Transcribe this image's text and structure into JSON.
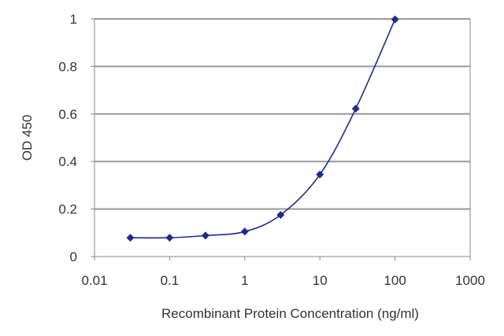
{
  "chart_data": {
    "type": "scatter",
    "title": "",
    "xlabel": "Recombinant Protein Concentration (ng/ml)",
    "ylabel": "OD 450",
    "x_scale": "log",
    "xlim": [
      0.01,
      1000
    ],
    "ylim": [
      0,
      1
    ],
    "x_ticks": [
      "0.01",
      "0.1",
      "1",
      "10",
      "100",
      "1000"
    ],
    "y_ticks": [
      "0",
      "0.2",
      "0.4",
      "0.6",
      "0.8",
      "1"
    ],
    "grid": "horizontal",
    "legend": "none",
    "series": [
      {
        "x": [
          0.03,
          0.1,
          0.3,
          1,
          3,
          10,
          30,
          100
        ],
        "y": [
          0.079,
          0.079,
          0.088,
          0.105,
          0.175,
          0.345,
          0.622,
          0.998
        ]
      }
    ],
    "colors": {
      "series": "#1f2a8c",
      "plot_bg": "#ffffff",
      "grid": "#999999",
      "axis": "#888888"
    }
  }
}
